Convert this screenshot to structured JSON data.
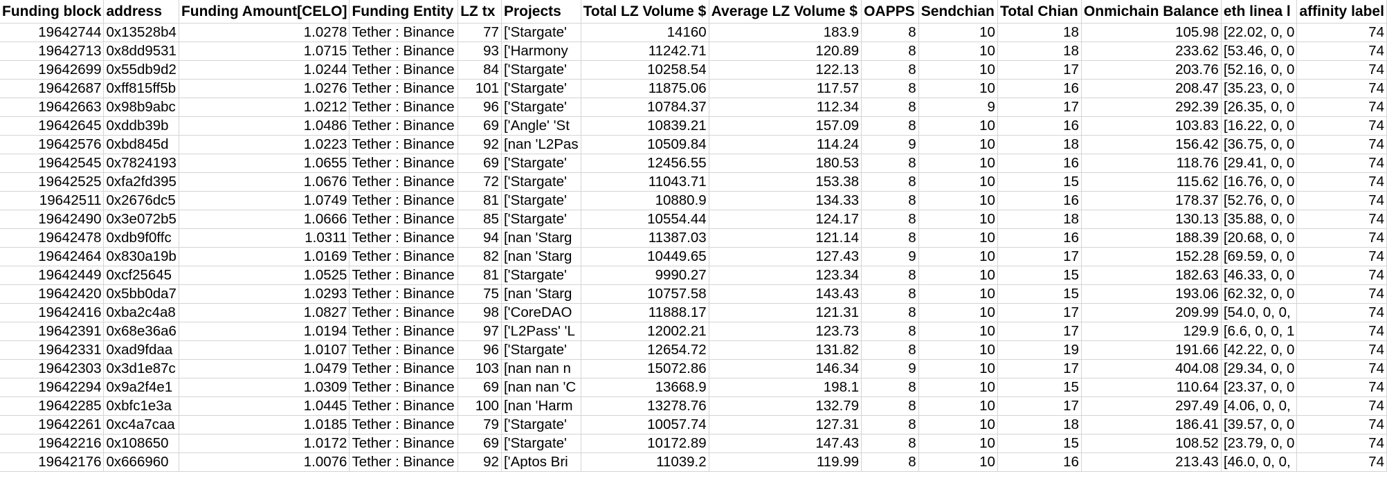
{
  "columns": [
    {
      "label": "Funding block",
      "align": "num"
    },
    {
      "label": "address",
      "align": "txt"
    },
    {
      "label": "Funding Amount[CELO]",
      "align": "num"
    },
    {
      "label": "Funding Entity",
      "align": "txt"
    },
    {
      "label": "LZ tx",
      "align": "num"
    },
    {
      "label": "Projects",
      "align": "txt"
    },
    {
      "label": "Total LZ Volume $",
      "align": "num"
    },
    {
      "label": "Average LZ Volume $",
      "align": "num"
    },
    {
      "label": "OAPPS",
      "align": "num"
    },
    {
      "label": "Sendchian",
      "align": "num"
    },
    {
      "label": "Total Chian",
      "align": "num"
    },
    {
      "label": "Onmichain Balance",
      "align": "num"
    },
    {
      "label": "eth linea l",
      "align": "txt"
    },
    {
      "label": "affinity label",
      "align": "num"
    }
  ],
  "rows": [
    [
      "19642744",
      "0x13528b4",
      "1.0278",
      "Tether : Binance",
      "77",
      "['Stargate'",
      "14160",
      "183.9",
      "8",
      "10",
      "18",
      "105.98",
      "[22.02, 0, 0",
      "74"
    ],
    [
      "19642713",
      "0x8dd9531",
      "1.0715",
      "Tether : Binance",
      "93",
      "['Harmony",
      "11242.71",
      "120.89",
      "8",
      "10",
      "18",
      "233.62",
      "[53.46, 0, 0",
      "74"
    ],
    [
      "19642699",
      "0x55db9d2",
      "1.0244",
      "Tether : Binance",
      "84",
      "['Stargate'",
      "10258.54",
      "122.13",
      "8",
      "10",
      "17",
      "203.76",
      "[52.16, 0, 0",
      "74"
    ],
    [
      "19642687",
      "0xff815ff5b",
      "1.0276",
      "Tether : Binance",
      "101",
      "['Stargate'",
      "11875.06",
      "117.57",
      "8",
      "10",
      "16",
      "208.47",
      "[35.23, 0, 0",
      "74"
    ],
    [
      "19642663",
      "0x98b9abc",
      "1.0212",
      "Tether : Binance",
      "96",
      "['Stargate'",
      "10784.37",
      "112.34",
      "8",
      "9",
      "17",
      "292.39",
      "[26.35, 0, 0",
      "74"
    ],
    [
      "19642645",
      "0xddb39b",
      "1.0486",
      "Tether : Binance",
      "69",
      "['Angle' 'St",
      "10839.21",
      "157.09",
      "8",
      "10",
      "16",
      "103.83",
      "[16.22, 0, 0",
      "74"
    ],
    [
      "19642576",
      "0xbd845d",
      "1.0223",
      "Tether : Binance",
      "92",
      "[nan 'L2Pas",
      "10509.84",
      "114.24",
      "9",
      "10",
      "18",
      "156.42",
      "[36.75, 0, 0",
      "74"
    ],
    [
      "19642545",
      "0x7824193",
      "1.0655",
      "Tether : Binance",
      "69",
      "['Stargate'",
      "12456.55",
      "180.53",
      "8",
      "10",
      "16",
      "118.76",
      "[29.41, 0, 0",
      "74"
    ],
    [
      "19642525",
      "0xfa2fd395",
      "1.0676",
      "Tether : Binance",
      "72",
      "['Stargate'",
      "11043.71",
      "153.38",
      "8",
      "10",
      "15",
      "115.62",
      "[16.76, 0, 0",
      "74"
    ],
    [
      "19642511",
      "0x2676dc5",
      "1.0749",
      "Tether : Binance",
      "81",
      "['Stargate'",
      "10880.9",
      "134.33",
      "8",
      "10",
      "16",
      "178.37",
      "[52.76, 0, 0",
      "74"
    ],
    [
      "19642490",
      "0x3e072b5",
      "1.0666",
      "Tether : Binance",
      "85",
      "['Stargate'",
      "10554.44",
      "124.17",
      "8",
      "10",
      "18",
      "130.13",
      "[35.88, 0, 0",
      "74"
    ],
    [
      "19642478",
      "0xdb9f0ffc",
      "1.0311",
      "Tether : Binance",
      "94",
      "[nan 'Starg",
      "11387.03",
      "121.14",
      "8",
      "10",
      "16",
      "188.39",
      "[20.68, 0, 0",
      "74"
    ],
    [
      "19642464",
      "0x830a19b",
      "1.0169",
      "Tether : Binance",
      "82",
      "[nan 'Starg",
      "10449.65",
      "127.43",
      "9",
      "10",
      "17",
      "152.28",
      "[69.59, 0, 0",
      "74"
    ],
    [
      "19642449",
      "0xcf25645",
      "1.0525",
      "Tether : Binance",
      "81",
      "['Stargate'",
      "9990.27",
      "123.34",
      "8",
      "10",
      "15",
      "182.63",
      "[46.33, 0, 0",
      "74"
    ],
    [
      "19642420",
      "0x5bb0da7",
      "1.0293",
      "Tether : Binance",
      "75",
      "[nan 'Starg",
      "10757.58",
      "143.43",
      "8",
      "10",
      "15",
      "193.06",
      "[62.32, 0, 0",
      "74"
    ],
    [
      "19642416",
      "0xba2c4a8",
      "1.0827",
      "Tether : Binance",
      "98",
      "['CoreDAO",
      "11888.17",
      "121.31",
      "8",
      "10",
      "17",
      "209.99",
      "[54.0, 0, 0,",
      "74"
    ],
    [
      "19642391",
      "0x68e36a6",
      "1.0194",
      "Tether : Binance",
      "97",
      "['L2Pass' 'L",
      "12002.21",
      "123.73",
      "8",
      "10",
      "17",
      "129.9",
      "[6.6, 0, 0, 1",
      "74"
    ],
    [
      "19642331",
      "0xad9fdaa",
      "1.0107",
      "Tether : Binance",
      "96",
      "['Stargate'",
      "12654.72",
      "131.82",
      "8",
      "10",
      "19",
      "191.66",
      "[42.22, 0, 0",
      "74"
    ],
    [
      "19642303",
      "0x3d1e87c",
      "1.0479",
      "Tether : Binance",
      "103",
      "[nan nan n",
      "15072.86",
      "146.34",
      "9",
      "10",
      "17",
      "404.08",
      "[29.34, 0, 0",
      "74"
    ],
    [
      "19642294",
      "0x9a2f4e1",
      "1.0309",
      "Tether : Binance",
      "69",
      "[nan nan 'C",
      "13668.9",
      "198.1",
      "8",
      "10",
      "15",
      "110.64",
      "[23.37, 0, 0",
      "74"
    ],
    [
      "19642285",
      "0xbfc1e3a",
      "1.0445",
      "Tether : Binance",
      "100",
      "[nan 'Harm",
      "13278.76",
      "132.79",
      "8",
      "10",
      "17",
      "297.49",
      "[4.06, 0, 0,",
      "74"
    ],
    [
      "19642261",
      "0xc4a7caa",
      "1.0185",
      "Tether : Binance",
      "79",
      "['Stargate'",
      "10057.74",
      "127.31",
      "8",
      "10",
      "18",
      "186.41",
      "[39.57, 0, 0",
      "74"
    ],
    [
      "19642216",
      "0x108650",
      "1.0172",
      "Tether : Binance",
      "69",
      "['Stargate'",
      "10172.89",
      "147.43",
      "8",
      "10",
      "15",
      "108.52",
      "[23.79, 0, 0",
      "74"
    ],
    [
      "19642176",
      "0x666960",
      "1.0076",
      "Tether : Binance",
      "92",
      "['Aptos Bri",
      "11039.2",
      "119.99",
      "8",
      "10",
      "16",
      "213.43",
      "[46.0, 0, 0,",
      "74"
    ]
  ]
}
